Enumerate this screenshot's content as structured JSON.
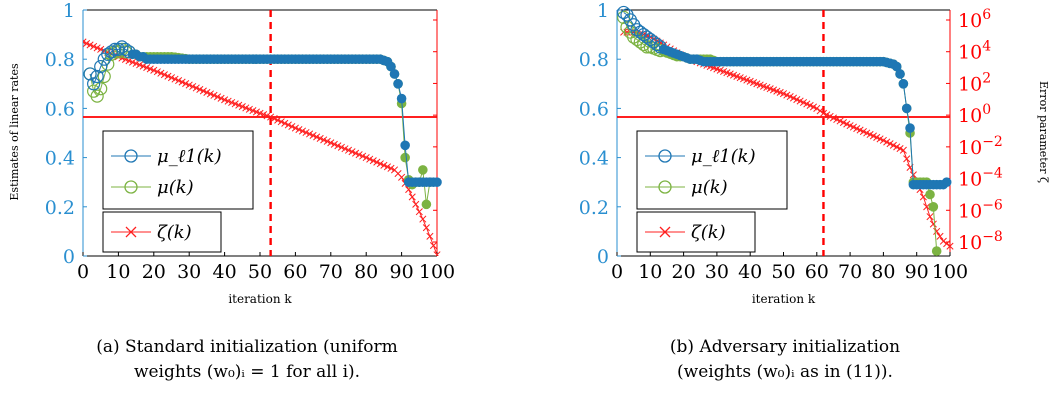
{
  "colors": {
    "axis_blue": "#2a8fd0",
    "axis_red": "#ff0000",
    "mu_l1": "#1f77b4",
    "mu": "#7cb342",
    "zeta": "#ff2020"
  },
  "ylabel_left": "Estimates of linear rates",
  "ylabel_right": "Error parameter ζ",
  "chart_data": [
    {
      "type": "line",
      "panel": "a",
      "caption_line1": "(a) Standard initialization (uniform",
      "caption_line2": "weights (w₀)ᵢ = 1 for all i).",
      "xlabel": "iteration k",
      "ylabel": "Estimates of linear rates",
      "xlim": [
        0,
        100
      ],
      "ylim": [
        0,
        1
      ],
      "xticks": [
        "0",
        "10",
        "20",
        "30",
        "40",
        "50",
        "60",
        "70",
        "80",
        "90",
        "100"
      ],
      "yticks": [
        "0",
        "0.2",
        "0.4",
        "0.6",
        "0.8",
        "1"
      ],
      "vline_x": 53,
      "hline_y": 0.565,
      "legend": [
        "μ_ℓ1(k)",
        "μ(k)",
        "ζ(k)"
      ],
      "series": [
        {
          "name": "μ_ℓ1(k)",
          "marker": "o",
          "points": [
            [
              2,
              0.74
            ],
            [
              3,
              0.7
            ],
            [
              4,
              0.73
            ],
            [
              5,
              0.77
            ],
            [
              6,
              0.8
            ],
            [
              7,
              0.82
            ],
            [
              8,
              0.83
            ],
            [
              9,
              0.84
            ],
            [
              10,
              0.84
            ],
            [
              11,
              0.85
            ],
            [
              12,
              0.84
            ],
            [
              13,
              0.83
            ],
            [
              14,
              0.82
            ],
            [
              15,
              0.82
            ],
            [
              16,
              0.81
            ],
            [
              17,
              0.81
            ],
            [
              18,
              0.8
            ],
            [
              20,
              0.8
            ],
            [
              25,
              0.8
            ],
            [
              30,
              0.8
            ],
            [
              35,
              0.8
            ],
            [
              40,
              0.8
            ],
            [
              45,
              0.8
            ],
            [
              50,
              0.8
            ],
            [
              55,
              0.8
            ],
            [
              60,
              0.8
            ],
            [
              65,
              0.8
            ],
            [
              70,
              0.8
            ],
            [
              75,
              0.8
            ],
            [
              80,
              0.8
            ],
            [
              84,
              0.8
            ],
            [
              86,
              0.79
            ],
            [
              87,
              0.77
            ],
            [
              88,
              0.74
            ],
            [
              89,
              0.7
            ],
            [
              90,
              0.64
            ],
            [
              91,
              0.45
            ],
            [
              92,
              0.3
            ],
            [
              93,
              0.3
            ],
            [
              94,
              0.3
            ],
            [
              95,
              0.3
            ],
            [
              96,
              0.3
            ],
            [
              97,
              0.3
            ],
            [
              98,
              0.3
            ],
            [
              99,
              0.3
            ],
            [
              100,
              0.3
            ]
          ]
        },
        {
          "name": "μ(k)",
          "marker": "o",
          "points": [
            [
              2,
              0.74
            ],
            [
              3,
              0.67
            ],
            [
              4,
              0.65
            ],
            [
              5,
              0.68
            ],
            [
              6,
              0.73
            ],
            [
              7,
              0.78
            ],
            [
              8,
              0.82
            ],
            [
              9,
              0.83
            ],
            [
              10,
              0.83
            ],
            [
              11,
              0.84
            ],
            [
              12,
              0.83
            ],
            [
              13,
              0.83
            ],
            [
              14,
              0.82
            ],
            [
              15,
              0.82
            ],
            [
              16,
              0.81
            ],
            [
              17,
              0.81
            ],
            [
              18,
              0.81
            ],
            [
              20,
              0.81
            ],
            [
              25,
              0.81
            ],
            [
              30,
              0.8
            ],
            [
              35,
              0.8
            ],
            [
              40,
              0.8
            ],
            [
              45,
              0.8
            ],
            [
              50,
              0.8
            ],
            [
              55,
              0.8
            ],
            [
              60,
              0.8
            ],
            [
              65,
              0.8
            ],
            [
              70,
              0.8
            ],
            [
              75,
              0.8
            ],
            [
              80,
              0.8
            ],
            [
              84,
              0.8
            ],
            [
              86,
              0.79
            ],
            [
              87,
              0.77
            ],
            [
              88,
              0.74
            ],
            [
              89,
              0.7
            ],
            [
              90,
              0.62
            ],
            [
              91,
              0.4
            ],
            [
              92,
              0.31
            ],
            [
              93,
              0.29
            ],
            [
              94,
              0.3
            ],
            [
              95,
              0.3
            ],
            [
              96,
              0.35
            ],
            [
              97,
              0.21
            ],
            [
              98,
              0.3
            ]
          ]
        },
        {
          "name": "ζ(k)",
          "marker": "x",
          "points": [
            [
              0,
              0.87
            ],
            [
              10,
              0.81
            ],
            [
              20,
              0.755
            ],
            [
              30,
              0.695
            ],
            [
              40,
              0.635
            ],
            [
              50,
              0.58
            ],
            [
              53,
              0.565
            ],
            [
              60,
              0.52
            ],
            [
              70,
              0.46
            ],
            [
              80,
              0.4
            ],
            [
              88,
              0.35
            ],
            [
              90,
              0.32
            ],
            [
              92,
              0.27
            ],
            [
              94,
              0.21
            ],
            [
              96,
              0.15
            ],
            [
              98,
              0.08
            ],
            [
              100,
              0.005
            ]
          ]
        }
      ]
    },
    {
      "type": "line",
      "panel": "b",
      "caption_line1": "(b) Adversary initialization",
      "caption_line2": "(weights (w₀)ᵢ as in (11)).",
      "xlabel": "iteration k",
      "ylabel_right": "Error parameter ζ",
      "xlim": [
        0,
        100
      ],
      "ylim": [
        0,
        1
      ],
      "xticks": [
        "0",
        "10",
        "20",
        "30",
        "40",
        "50",
        "60",
        "70",
        "80",
        "90",
        "100"
      ],
      "yticks": [
        "0",
        "0.2",
        "0.4",
        "0.6",
        "0.8",
        "1"
      ],
      "right_axis_scale": "log",
      "right_yticks": [
        "10^-8",
        "10^-6",
        "10^-4",
        "10^-2",
        "10^0",
        "10^2",
        "10^4",
        "10^6"
      ],
      "vline_x": 62,
      "hline_y": 0.565,
      "legend": [
        "μ_ℓ1(k)",
        "μ(k)",
        "ζ(k)"
      ],
      "series": [
        {
          "name": "μ_ℓ1(k)",
          "marker": "o",
          "points": [
            [
              2,
              0.99
            ],
            [
              3,
              0.98
            ],
            [
              4,
              0.96
            ],
            [
              5,
              0.94
            ],
            [
              6,
              0.92
            ],
            [
              7,
              0.91
            ],
            [
              8,
              0.9
            ],
            [
              9,
              0.89
            ],
            [
              10,
              0.88
            ],
            [
              12,
              0.86
            ],
            [
              14,
              0.84
            ],
            [
              16,
              0.83
            ],
            [
              18,
              0.82
            ],
            [
              20,
              0.81
            ],
            [
              22,
              0.8
            ],
            [
              24,
              0.8
            ],
            [
              26,
              0.79
            ],
            [
              30,
              0.79
            ],
            [
              35,
              0.79
            ],
            [
              40,
              0.79
            ],
            [
              45,
              0.79
            ],
            [
              50,
              0.79
            ],
            [
              55,
              0.79
            ],
            [
              60,
              0.79
            ],
            [
              65,
              0.79
            ],
            [
              70,
              0.79
            ],
            [
              75,
              0.79
            ],
            [
              80,
              0.79
            ],
            [
              83,
              0.78
            ],
            [
              84,
              0.77
            ],
            [
              85,
              0.74
            ],
            [
              86,
              0.7
            ],
            [
              87,
              0.6
            ],
            [
              88,
              0.52
            ],
            [
              89,
              0.29
            ],
            [
              90,
              0.29
            ],
            [
              91,
              0.29
            ],
            [
              92,
              0.29
            ],
            [
              93,
              0.29
            ],
            [
              94,
              0.29
            ],
            [
              95,
              0.29
            ],
            [
              96,
              0.29
            ],
            [
              97,
              0.29
            ],
            [
              98,
              0.29
            ],
            [
              99,
              0.3
            ]
          ]
        },
        {
          "name": "μ(k)",
          "marker": "o",
          "points": [
            [
              2,
              0.97
            ],
            [
              3,
              0.93
            ],
            [
              4,
              0.91
            ],
            [
              5,
              0.89
            ],
            [
              6,
              0.88
            ],
            [
              7,
              0.87
            ],
            [
              8,
              0.86
            ],
            [
              9,
              0.85
            ],
            [
              10,
              0.85
            ],
            [
              12,
              0.84
            ],
            [
              14,
              0.83
            ],
            [
              16,
              0.82
            ],
            [
              18,
              0.81
            ],
            [
              20,
              0.81
            ],
            [
              22,
              0.8
            ],
            [
              24,
              0.8
            ],
            [
              26,
              0.8
            ],
            [
              28,
              0.8
            ],
            [
              30,
              0.79
            ],
            [
              35,
              0.79
            ],
            [
              40,
              0.79
            ],
            [
              45,
              0.79
            ],
            [
              50,
              0.79
            ],
            [
              55,
              0.79
            ],
            [
              60,
              0.79
            ],
            [
              65,
              0.79
            ],
            [
              70,
              0.79
            ],
            [
              75,
              0.79
            ],
            [
              80,
              0.79
            ],
            [
              83,
              0.78
            ],
            [
              84,
              0.77
            ],
            [
              85,
              0.74
            ],
            [
              86,
              0.7
            ],
            [
              87,
              0.6
            ],
            [
              88,
              0.5
            ],
            [
              89,
              0.3
            ],
            [
              90,
              0.3
            ],
            [
              91,
              0.3
            ],
            [
              92,
              0.3
            ],
            [
              93,
              0.3
            ],
            [
              94,
              0.25
            ],
            [
              95,
              0.2
            ],
            [
              96,
              0.02
            ]
          ]
        },
        {
          "name": "ζ(k)",
          "marker": "x",
          "points": [
            [
              2,
              0.91
            ],
            [
              5,
              0.91
            ],
            [
              8,
              0.9
            ],
            [
              10,
              0.89
            ],
            [
              15,
              0.85
            ],
            [
              20,
              0.81
            ],
            [
              30,
              0.76
            ],
            [
              40,
              0.71
            ],
            [
              50,
              0.66
            ],
            [
              60,
              0.6
            ],
            [
              62,
              0.58
            ],
            [
              70,
              0.53
            ],
            [
              80,
              0.47
            ],
            [
              86,
              0.43
            ],
            [
              88,
              0.36
            ],
            [
              90,
              0.3
            ],
            [
              92,
              0.24
            ],
            [
              94,
              0.16
            ],
            [
              96,
              0.1
            ],
            [
              98,
              0.06
            ],
            [
              100,
              0.04
            ]
          ]
        }
      ]
    }
  ]
}
